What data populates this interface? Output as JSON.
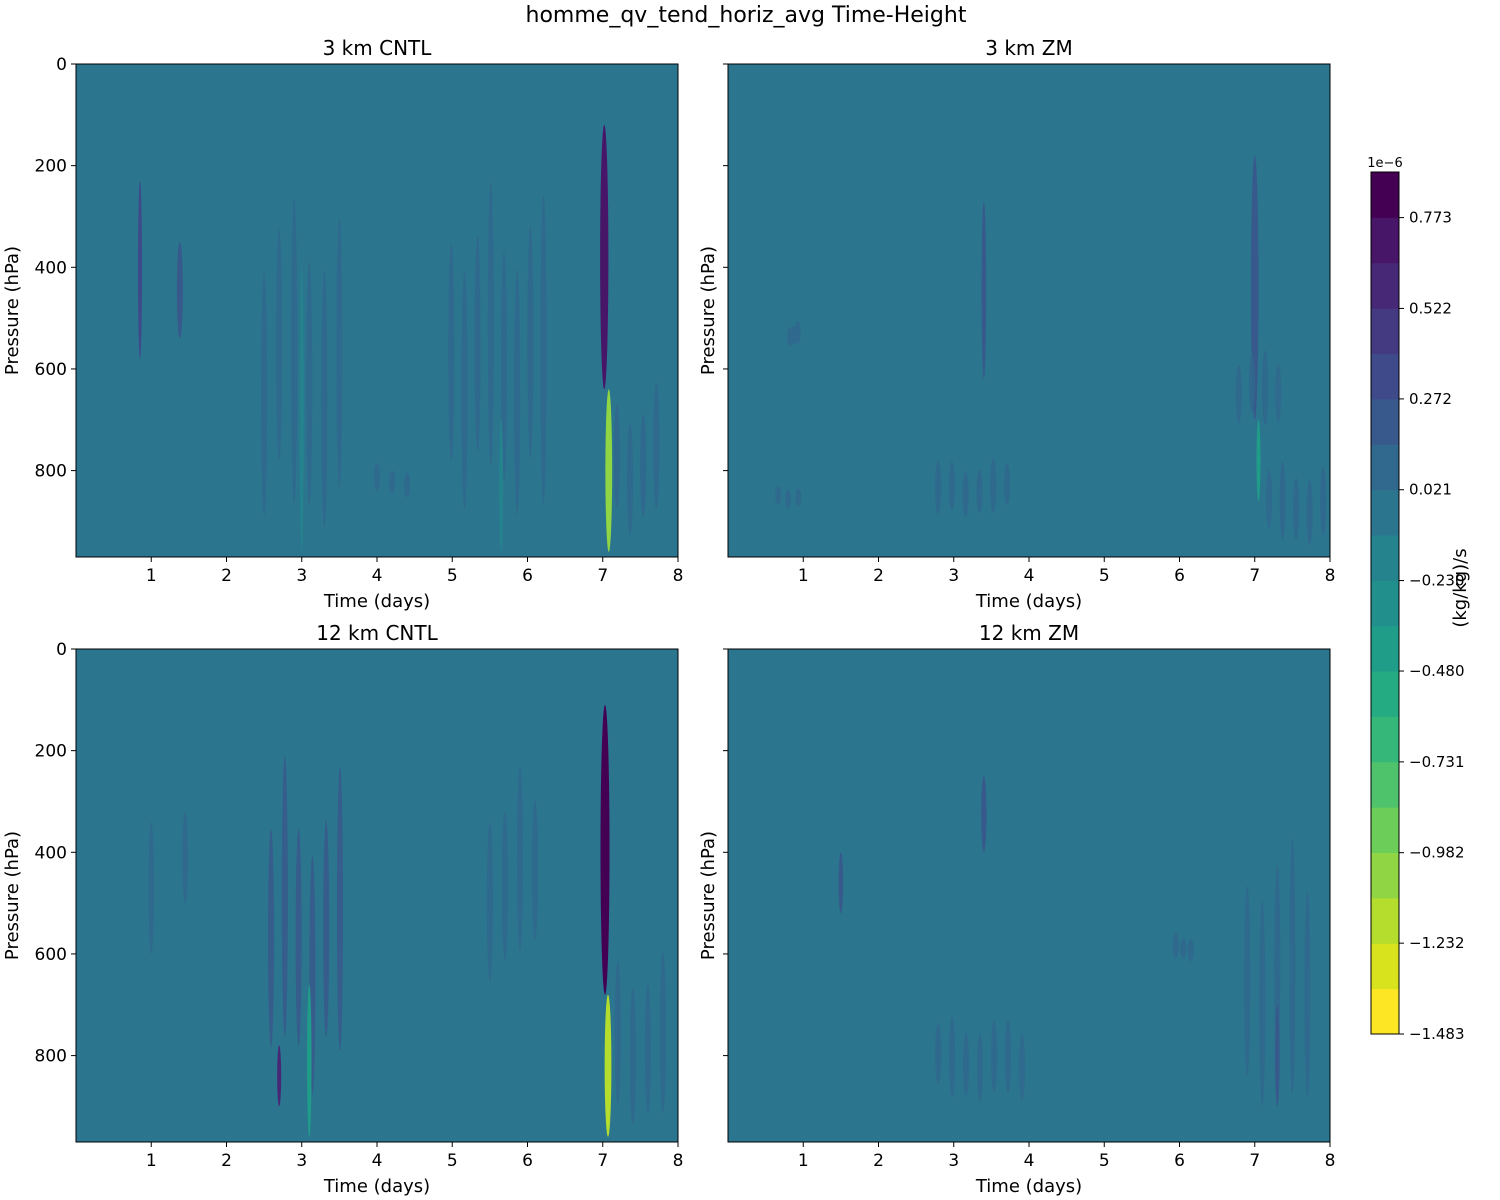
{
  "chart_data": {
    "type": "heatmap",
    "title": "homme_qv_tend_horiz_avg Time-Height",
    "xlabel": "Time (days)",
    "ylabel": "Pressure (hPa)",
    "xlim": [
      0,
      8
    ],
    "ylim": [
      970,
      0
    ],
    "x_ticks": [
      "1",
      "2",
      "3",
      "4",
      "5",
      "6",
      "7",
      "8"
    ],
    "y_ticks": [
      "0",
      "200",
      "400",
      "600",
      "800"
    ],
    "background_level": 0.021,
    "panels": [
      {
        "title": "3 km CNTL",
        "features": [
          {
            "kind": "streak",
            "x": 0.85,
            "p0": 230,
            "p1": 580,
            "width": 0.05,
            "value": 0.35
          },
          {
            "kind": "streak",
            "x": 1.38,
            "p0": 350,
            "p1": 540,
            "width": 0.08,
            "value": 0.15
          },
          {
            "kind": "patch",
            "x0": 2.4,
            "x1": 3.6,
            "p0": 180,
            "p1": 960,
            "value": 0.12
          },
          {
            "kind": "streak",
            "x": 3.0,
            "p0": 400,
            "p1": 960,
            "width": 0.05,
            "value": -0.15
          },
          {
            "kind": "patch",
            "x0": 3.9,
            "x1": 4.5,
            "p0": 780,
            "p1": 860,
            "value": 0.08
          },
          {
            "kind": "patch",
            "x0": 4.9,
            "x1": 6.3,
            "p0": 170,
            "p1": 960,
            "value": 0.1
          },
          {
            "kind": "streak",
            "x": 5.65,
            "p0": 700,
            "p1": 960,
            "width": 0.05,
            "value": -0.2
          },
          {
            "kind": "streak",
            "x": 7.02,
            "p0": 120,
            "p1": 640,
            "width": 0.11,
            "value": 0.75
          },
          {
            "kind": "streak",
            "x": 7.08,
            "p0": 640,
            "p1": 960,
            "width": 0.09,
            "value": -1.0
          },
          {
            "kind": "patch",
            "x0": 7.1,
            "x1": 7.8,
            "p0": 600,
            "p1": 960,
            "value": 0.1
          }
        ]
      },
      {
        "title": "3 km ZM",
        "features": [
          {
            "kind": "patch",
            "x0": 0.6,
            "x1": 1.0,
            "p0": 820,
            "p1": 880,
            "value": 0.08
          },
          {
            "kind": "patch",
            "x0": 0.8,
            "x1": 0.95,
            "p0": 500,
            "p1": 560,
            "value": 0.1
          },
          {
            "kind": "streak",
            "x": 3.4,
            "p0": 270,
            "p1": 620,
            "width": 0.06,
            "value": 0.25
          },
          {
            "kind": "patch",
            "x0": 2.7,
            "x1": 3.8,
            "p0": 760,
            "p1": 900,
            "value": 0.07
          },
          {
            "kind": "streak",
            "x": 7.0,
            "p0": 180,
            "p1": 700,
            "width": 0.1,
            "value": 0.25
          },
          {
            "kind": "streak",
            "x": 7.05,
            "p0": 700,
            "p1": 860,
            "width": 0.05,
            "value": -0.4
          },
          {
            "kind": "patch",
            "x0": 6.7,
            "x1": 7.4,
            "p0": 540,
            "p1": 720,
            "value": 0.1
          },
          {
            "kind": "patch",
            "x0": 7.1,
            "x1": 8.0,
            "p0": 760,
            "p1": 960,
            "value": 0.08
          }
        ]
      },
      {
        "title": "12 km CNTL",
        "features": [
          {
            "kind": "streak",
            "x": 1.0,
            "p0": 340,
            "p1": 600,
            "width": 0.07,
            "value": 0.1
          },
          {
            "kind": "streak",
            "x": 1.45,
            "p0": 320,
            "p1": 500,
            "width": 0.07,
            "value": 0.1
          },
          {
            "kind": "patch",
            "x0": 2.5,
            "x1": 3.6,
            "p0": 170,
            "p1": 960,
            "value": 0.15
          },
          {
            "kind": "streak",
            "x": 2.7,
            "p0": 780,
            "p1": 900,
            "width": 0.05,
            "value": 0.55
          },
          {
            "kind": "streak",
            "x": 3.1,
            "p0": 660,
            "p1": 960,
            "width": 0.06,
            "value": -0.4
          },
          {
            "kind": "patch",
            "x0": 5.4,
            "x1": 6.2,
            "p0": 190,
            "p1": 700,
            "value": 0.08
          },
          {
            "kind": "streak",
            "x": 7.03,
            "p0": 110,
            "p1": 680,
            "width": 0.12,
            "value": 0.8
          },
          {
            "kind": "streak",
            "x": 7.07,
            "p0": 680,
            "p1": 960,
            "width": 0.09,
            "value": -1.2
          },
          {
            "kind": "patch",
            "x0": 7.1,
            "x1": 7.9,
            "p0": 550,
            "p1": 960,
            "value": 0.1
          }
        ]
      },
      {
        "title": "12 km ZM",
        "features": [
          {
            "kind": "streak",
            "x": 1.5,
            "p0": 400,
            "p1": 520,
            "width": 0.06,
            "value": 0.15
          },
          {
            "kind": "streak",
            "x": 3.4,
            "p0": 250,
            "p1": 400,
            "width": 0.07,
            "value": 0.15
          },
          {
            "kind": "patch",
            "x0": 2.7,
            "x1": 4.0,
            "p0": 700,
            "p1": 900,
            "value": 0.08
          },
          {
            "kind": "patch",
            "x0": 5.9,
            "x1": 6.2,
            "p0": 550,
            "p1": 620,
            "value": 0.08
          },
          {
            "kind": "patch",
            "x0": 6.8,
            "x1": 7.8,
            "p0": 300,
            "p1": 960,
            "value": 0.1
          },
          {
            "kind": "streak",
            "x": 7.3,
            "p0": 700,
            "p1": 900,
            "width": 0.06,
            "value": 0.25
          }
        ]
      }
    ],
    "colorbar": {
      "label": "(kg/kg)/s",
      "exponent": "1e−6",
      "tick_labels": [
        "0.773",
        "0.522",
        "0.272",
        "0.021",
        "−0.230",
        "−0.480",
        "−0.731",
        "−0.982",
        "−1.232",
        "−1.483"
      ],
      "tick_values": [
        0.773,
        0.522,
        0.272,
        0.021,
        -0.23,
        -0.48,
        -0.731,
        -0.982,
        -1.232,
        -1.483
      ],
      "min": -1.483,
      "max": 0.899,
      "levels": 19,
      "colors": [
        "#fde725",
        "#d2e21b",
        "#a5db36",
        "#7ad151",
        "#54c568",
        "#35b779",
        "#22a884",
        "#1f988b",
        "#23888e",
        "#2a788e",
        "#31688e",
        "#39568c",
        "#414487",
        "#472f7d",
        "#481a6c",
        "#440154"
      ]
    }
  }
}
